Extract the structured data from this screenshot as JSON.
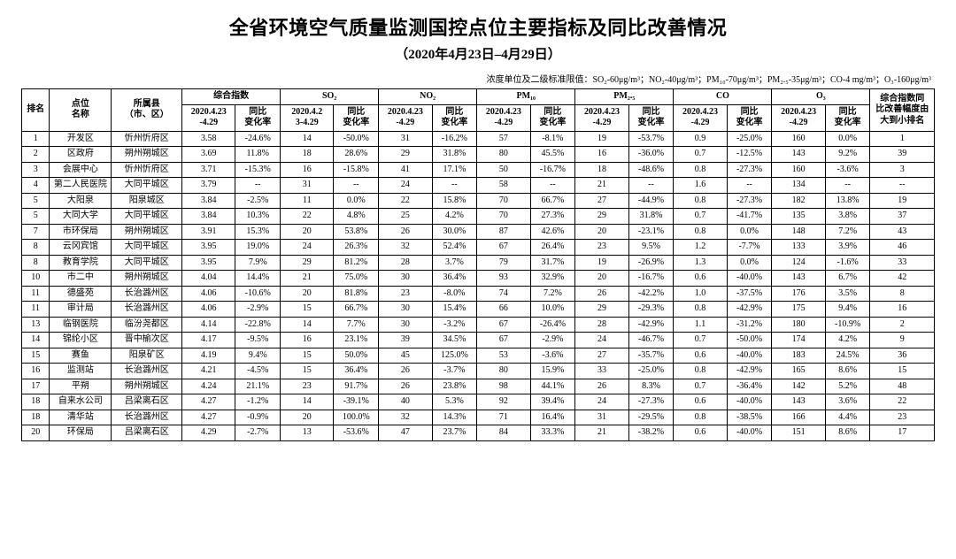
{
  "title": "全省环境空气质量监测国控点位主要指标及同比改善情况",
  "subtitle": "（2020年4月23日–4月29日）",
  "units_prefix": "浓度单位及二级标准限值：",
  "units_items": [
    "SO₂-60μg/m³",
    "NO₂-40μg/m³",
    "PM₁₀-70μg/m³",
    "PM₂.₅-35μg/m³",
    "CO-4 mg/m³",
    "O₃-160μg/m³"
  ],
  "header": {
    "rank": "排名",
    "site": "点位\n名称",
    "county": "所属县\n（市、区）",
    "groups": [
      "综合指数",
      "SO₂",
      "NO₂",
      "PM₁₀",
      "PM₂.₅",
      "CO",
      "O₃"
    ],
    "period_main": "2020.4.23\n-4.29",
    "period_alt": "2020.4.2\n3-4.29",
    "change": "同比\n变化率",
    "rank2": "综合指数同\n比改善幅度由\n大到小排名"
  },
  "rows": [
    {
      "rank": "1",
      "site": "开发区",
      "county": "忻州忻府区",
      "v": [
        "3.58",
        "-24.6%",
        "14",
        "-50.0%",
        "31",
        "-16.2%",
        "57",
        "-8.1%",
        "19",
        "-53.7%",
        "0.9",
        "-25.0%",
        "160",
        "0.0%"
      ],
      "r2": "1"
    },
    {
      "rank": "2",
      "site": "区政府",
      "county": "朔州朔城区",
      "v": [
        "3.69",
        "11.8%",
        "18",
        "28.6%",
        "29",
        "31.8%",
        "80",
        "45.5%",
        "16",
        "-36.0%",
        "0.7",
        "-12.5%",
        "143",
        "9.2%"
      ],
      "r2": "39"
    },
    {
      "rank": "3",
      "site": "会展中心",
      "county": "忻州忻府区",
      "v": [
        "3.71",
        "-15.3%",
        "16",
        "-15.8%",
        "41",
        "17.1%",
        "50",
        "-16.7%",
        "18",
        "-48.6%",
        "0.8",
        "-27.3%",
        "160",
        "-3.6%"
      ],
      "r2": "3"
    },
    {
      "rank": "4",
      "site": "第二人民医院",
      "county": "大同平城区",
      "v": [
        "3.79",
        "--",
        "31",
        "--",
        "24",
        "--",
        "58",
        "--",
        "21",
        "--",
        "1.6",
        "--",
        "134",
        "--"
      ],
      "r2": "--"
    },
    {
      "rank": "5",
      "site": "大阳泉",
      "county": "阳泉城区",
      "v": [
        "3.84",
        "-2.5%",
        "11",
        "0.0%",
        "22",
        "15.8%",
        "70",
        "66.7%",
        "27",
        "-44.9%",
        "0.8",
        "-27.3%",
        "182",
        "13.8%"
      ],
      "r2": "19"
    },
    {
      "rank": "5",
      "site": "大同大学",
      "county": "大同平城区",
      "v": [
        "3.84",
        "10.3%",
        "22",
        "4.8%",
        "25",
        "4.2%",
        "70",
        "27.3%",
        "29",
        "31.8%",
        "0.7",
        "-41.7%",
        "135",
        "3.8%"
      ],
      "r2": "37"
    },
    {
      "rank": "7",
      "site": "市环保局",
      "county": "朔州朔城区",
      "v": [
        "3.91",
        "15.3%",
        "20",
        "53.8%",
        "26",
        "30.0%",
        "87",
        "42.6%",
        "20",
        "-23.1%",
        "0.8",
        "0.0%",
        "148",
        "7.2%"
      ],
      "r2": "43"
    },
    {
      "rank": "8",
      "site": "云冈宾馆",
      "county": "大同平城区",
      "v": [
        "3.95",
        "19.0%",
        "24",
        "26.3%",
        "32",
        "52.4%",
        "67",
        "26.4%",
        "23",
        "9.5%",
        "1.2",
        "-7.7%",
        "133",
        "3.9%"
      ],
      "r2": "46"
    },
    {
      "rank": "8",
      "site": "教育学院",
      "county": "大同平城区",
      "v": [
        "3.95",
        "7.9%",
        "29",
        "81.2%",
        "28",
        "3.7%",
        "79",
        "31.7%",
        "19",
        "-26.9%",
        "1.3",
        "0.0%",
        "124",
        "-1.6%"
      ],
      "r2": "33"
    },
    {
      "rank": "10",
      "site": "市二中",
      "county": "朔州朔城区",
      "v": [
        "4.04",
        "14.4%",
        "21",
        "75.0%",
        "30",
        "36.4%",
        "93",
        "32.9%",
        "20",
        "-16.7%",
        "0.6",
        "-40.0%",
        "143",
        "6.7%"
      ],
      "r2": "42"
    },
    {
      "rank": "11",
      "site": "德盛苑",
      "county": "长治潞州区",
      "v": [
        "4.06",
        "-10.6%",
        "20",
        "81.8%",
        "23",
        "-8.0%",
        "74",
        "7.2%",
        "26",
        "-42.2%",
        "1.0",
        "-37.5%",
        "176",
        "3.5%"
      ],
      "r2": "8"
    },
    {
      "rank": "11",
      "site": "审计局",
      "county": "长治潞州区",
      "v": [
        "4.06",
        "-2.9%",
        "15",
        "66.7%",
        "30",
        "15.4%",
        "66",
        "10.0%",
        "29",
        "-29.3%",
        "0.8",
        "-42.9%",
        "175",
        "9.4%"
      ],
      "r2": "16"
    },
    {
      "rank": "13",
      "site": "临钢医院",
      "county": "临汾尧都区",
      "v": [
        "4.14",
        "-22.8%",
        "14",
        "7.7%",
        "30",
        "-3.2%",
        "67",
        "-26.4%",
        "28",
        "-42.9%",
        "1.1",
        "-31.2%",
        "180",
        "-10.9%"
      ],
      "r2": "2"
    },
    {
      "rank": "14",
      "site": "锦纶小区",
      "county": "晋中榆次区",
      "v": [
        "4.17",
        "-9.5%",
        "16",
        "23.1%",
        "39",
        "34.5%",
        "67",
        "-2.9%",
        "24",
        "-46.7%",
        "0.7",
        "-50.0%",
        "174",
        "4.2%"
      ],
      "r2": "9"
    },
    {
      "rank": "15",
      "site": "赛鱼",
      "county": "阳泉矿区",
      "v": [
        "4.19",
        "9.4%",
        "15",
        "50.0%",
        "45",
        "125.0%",
        "53",
        "-3.6%",
        "27",
        "-35.7%",
        "0.6",
        "-40.0%",
        "183",
        "24.5%"
      ],
      "r2": "36"
    },
    {
      "rank": "16",
      "site": "监测站",
      "county": "长治潞州区",
      "v": [
        "4.21",
        "-4.5%",
        "15",
        "36.4%",
        "26",
        "-3.7%",
        "80",
        "15.9%",
        "33",
        "-25.0%",
        "0.8",
        "-42.9%",
        "165",
        "8.6%"
      ],
      "r2": "15"
    },
    {
      "rank": "17",
      "site": "平朔",
      "county": "朔州朔城区",
      "v": [
        "4.24",
        "21.1%",
        "23",
        "91.7%",
        "26",
        "23.8%",
        "98",
        "44.1%",
        "26",
        "8.3%",
        "0.7",
        "-36.4%",
        "142",
        "5.2%"
      ],
      "r2": "48"
    },
    {
      "rank": "18",
      "site": "自来水公司",
      "county": "吕梁离石区",
      "v": [
        "4.27",
        "-1.2%",
        "14",
        "-39.1%",
        "40",
        "5.3%",
        "92",
        "39.4%",
        "24",
        "-27.3%",
        "0.6",
        "-40.0%",
        "143",
        "3.6%"
      ],
      "r2": "22"
    },
    {
      "rank": "18",
      "site": "清华站",
      "county": "长治潞州区",
      "v": [
        "4.27",
        "-0.9%",
        "20",
        "100.0%",
        "32",
        "14.3%",
        "71",
        "16.4%",
        "31",
        "-29.5%",
        "0.8",
        "-38.5%",
        "166",
        "4.4%"
      ],
      "r2": "23"
    },
    {
      "rank": "20",
      "site": "环保局",
      "county": "吕梁离石区",
      "v": [
        "4.29",
        "-2.7%",
        "13",
        "-53.6%",
        "47",
        "23.7%",
        "84",
        "33.3%",
        "21",
        "-38.2%",
        "0.6",
        "-40.0%",
        "151",
        "8.6%"
      ],
      "r2": "17"
    }
  ]
}
